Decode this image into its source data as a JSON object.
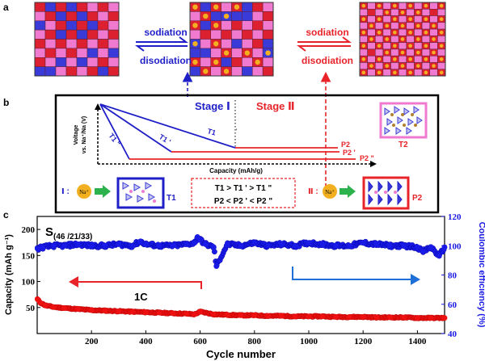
{
  "panel_labels": {
    "a": "a",
    "b": "b",
    "c": "c"
  },
  "panel_a": {
    "arrow1": {
      "forward": "sodiation",
      "backward": "disodiation",
      "color": "#1f1fc8"
    },
    "arrow2": {
      "forward": "sodiation",
      "backward": "disodiation",
      "color": "#e8242a"
    },
    "grids": [
      {
        "cells": 8,
        "dot_probability": 0.0
      },
      {
        "cells": 8,
        "dot_probability": 0.5
      },
      {
        "cells": 11,
        "dot_probability": 0.9
      }
    ],
    "colors": {
      "red": "#dd2030",
      "pink": "#f07ad0",
      "blue": "#3a3ad8",
      "dot": "#f2b020",
      "grid_line": "#5a2030"
    }
  },
  "panel_b": {
    "stage1": "Stage Ⅰ",
    "stage2": "Stage Ⅱ",
    "y_label_1": "Voltage",
    "y_label_2": "vs. Na⁺/Na (V)",
    "x_label": "Capacity (mAh/g)",
    "tick_mark": "'",
    "curve_labels": {
      "t1pp": "T1 \"",
      "t1p": "T1 '",
      "t1": "T1",
      "p2": "P2",
      "p2p": "P2 '",
      "p2pp": "P2 \""
    },
    "t2_label": "T2",
    "relation_1": "T1 > T1 ' > T1 \"",
    "relation_2": "P2 < P2 ' < P2 \"",
    "legend_left_num": "Ⅰ :",
    "legend_right_num": "Ⅱ :",
    "na_label": "Na⁺",
    "t1_box_label": "T1",
    "p2_box_label": "P2"
  },
  "chart_data": {
    "type": "scatter",
    "title": "S(46 /21/33)",
    "title_main": "S",
    "title_sub": "(46 /21/33)",
    "xlabel": "Cycle number",
    "ylabel_left": "Capacity (mAh g⁻¹)",
    "ylabel_right": "Coulombic efficiency (%)",
    "xlim": [
      0,
      1500
    ],
    "ylim_left": [
      0,
      225
    ],
    "ylim_right": [
      40,
      120
    ],
    "x_ticks": [
      "200",
      "400",
      "600",
      "800",
      "1000",
      "1200",
      "1400"
    ],
    "y_ticks_left": [
      "50",
      "100",
      "150",
      "200"
    ],
    "y_ticks_right": [
      "40",
      "60",
      "80",
      "100",
      "120"
    ],
    "annotation": "1C",
    "series": [
      {
        "name": "Capacity",
        "axis": "left",
        "color": "#ee1111",
        "x": [
          1,
          10,
          30,
          60,
          100,
          150,
          200,
          250,
          300,
          350,
          400,
          450,
          500,
          550,
          580,
          600,
          650,
          700,
          750,
          800,
          850,
          900,
          950,
          1000,
          1050,
          1100,
          1150,
          1200,
          1250,
          1300,
          1350,
          1400,
          1450,
          1500
        ],
        "values": [
          66,
          60,
          54,
          51,
          49,
          47,
          45,
          44,
          43,
          42,
          41,
          40,
          39,
          38,
          37,
          42,
          37,
          36,
          35,
          35,
          34,
          34,
          33,
          33,
          33,
          32,
          32,
          32,
          31,
          31,
          31,
          30,
          30,
          30
        ]
      },
      {
        "name": "Coulombic efficiency",
        "axis": "right",
        "color": "#1a1ae6",
        "x": [
          1,
          20,
          60,
          100,
          150,
          200,
          250,
          300,
          350,
          380,
          400,
          450,
          500,
          550,
          580,
          590,
          600,
          620,
          650,
          660,
          700,
          750,
          800,
          850,
          900,
          950,
          1000,
          1050,
          1100,
          1150,
          1200,
          1250,
          1300,
          1350,
          1400,
          1420,
          1450,
          1480,
          1500
        ],
        "values": [
          98,
          99,
          100,
          100,
          101,
          100,
          100,
          101,
          100,
          103,
          101,
          100,
          100,
          101,
          102,
          106,
          104,
          101,
          99,
          86,
          101,
          100,
          102,
          100,
          101,
          100,
          102,
          101,
          100,
          100,
          102,
          101,
          100,
          100,
          99,
          96,
          99,
          93,
          99
        ]
      }
    ]
  }
}
